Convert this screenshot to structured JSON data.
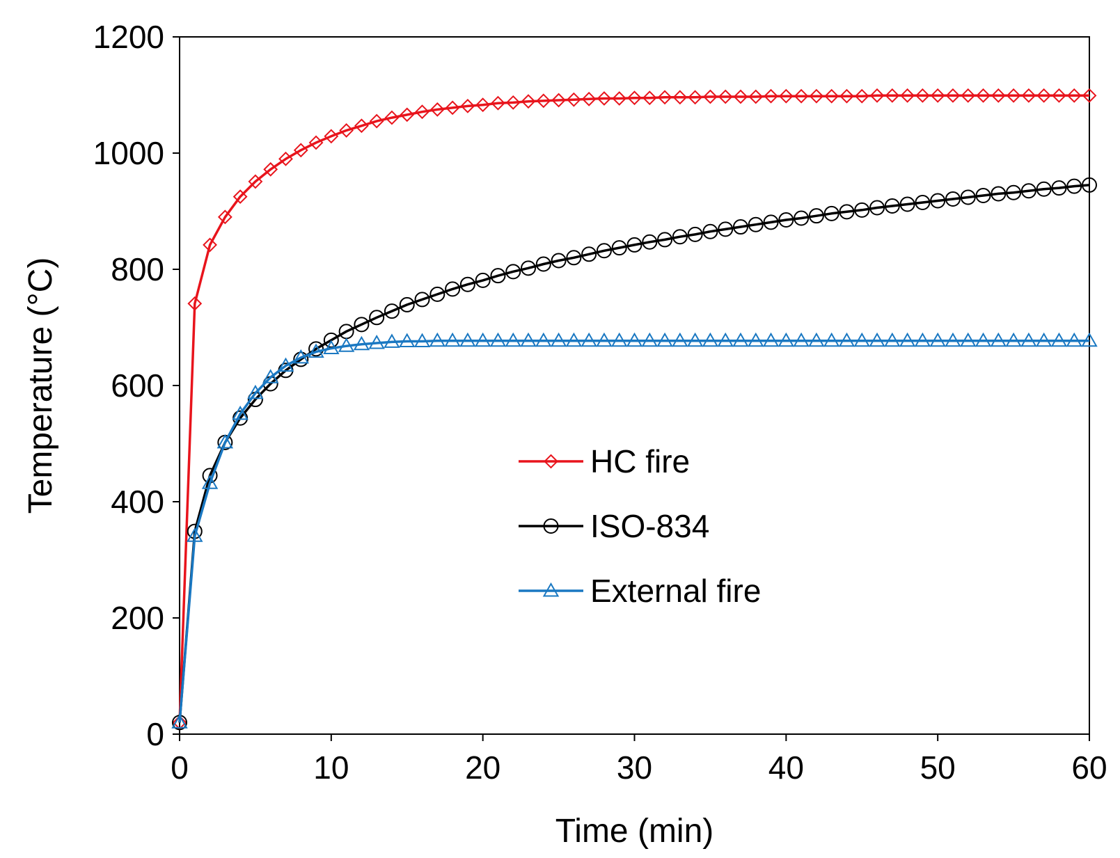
{
  "chart_data": {
    "type": "line",
    "title": "",
    "xlabel": "Time (min)",
    "ylabel": "Temperature (°C)",
    "xlim": [
      0,
      60
    ],
    "ylim": [
      0,
      1200
    ],
    "xticks": [
      0,
      10,
      20,
      30,
      40,
      50,
      60
    ],
    "yticks": [
      0,
      200,
      400,
      600,
      800,
      1000,
      1200
    ],
    "grid": false,
    "legend_position": "center-right",
    "series": [
      {
        "name": "HC fire",
        "color": "#e8141c",
        "marker": "diamond",
        "x": [
          0,
          1,
          2,
          3,
          4,
          5,
          6,
          7,
          8,
          9,
          10,
          11,
          12,
          13,
          14,
          15,
          16,
          17,
          18,
          19,
          20,
          21,
          22,
          23,
          24,
          25,
          26,
          27,
          28,
          29,
          30,
          31,
          32,
          33,
          34,
          35,
          36,
          37,
          38,
          39,
          40,
          41,
          42,
          43,
          44,
          45,
          46,
          47,
          48,
          49,
          50,
          51,
          52,
          53,
          54,
          55,
          56,
          57,
          58,
          59,
          60
        ],
        "y": [
          20,
          741,
          842,
          890,
          925,
          951,
          972,
          990,
          1005,
          1018,
          1029,
          1039,
          1047,
          1055,
          1061,
          1066,
          1071,
          1075,
          1078,
          1081,
          1083,
          1086,
          1087,
          1089,
          1090,
          1091,
          1092,
          1093,
          1094,
          1094,
          1095,
          1095,
          1096,
          1096,
          1096,
          1097,
          1097,
          1097,
          1097,
          1098,
          1098,
          1098,
          1098,
          1098,
          1098,
          1098,
          1099,
          1099,
          1099,
          1099,
          1099,
          1099,
          1099,
          1099,
          1099,
          1099,
          1099,
          1099,
          1099,
          1099,
          1099
        ]
      },
      {
        "name": "ISO-834",
        "color": "#000000",
        "marker": "circle",
        "x": [
          0,
          1,
          2,
          3,
          4,
          5,
          6,
          7,
          8,
          9,
          10,
          11,
          12,
          13,
          14,
          15,
          16,
          17,
          18,
          19,
          20,
          21,
          22,
          23,
          24,
          25,
          26,
          27,
          28,
          29,
          30,
          31,
          32,
          33,
          34,
          35,
          36,
          37,
          38,
          39,
          40,
          41,
          42,
          43,
          44,
          45,
          46,
          47,
          48,
          49,
          50,
          51,
          52,
          53,
          54,
          55,
          56,
          57,
          58,
          59,
          60
        ],
        "y": [
          20,
          349,
          445,
          502,
          544,
          576,
          603,
          626,
          645,
          663,
          678,
          693,
          705,
          717,
          728,
          739,
          748,
          757,
          766,
          774,
          781,
          789,
          796,
          802,
          809,
          815,
          820,
          826,
          832,
          837,
          842,
          847,
          851,
          856,
          860,
          865,
          869,
          873,
          877,
          881,
          885,
          888,
          892,
          896,
          899,
          902,
          906,
          909,
          912,
          915,
          918,
          921,
          924,
          927,
          930,
          932,
          935,
          938,
          940,
          943,
          945
        ]
      },
      {
        "name": "External fire",
        "color": "#1a78c2",
        "marker": "triangle",
        "x": [
          0,
          1,
          2,
          3,
          4,
          5,
          6,
          7,
          8,
          9,
          10,
          11,
          12,
          13,
          14,
          15,
          16,
          17,
          18,
          19,
          20,
          21,
          22,
          23,
          24,
          25,
          26,
          27,
          28,
          29,
          30,
          31,
          32,
          33,
          34,
          35,
          36,
          37,
          38,
          39,
          40,
          41,
          42,
          43,
          44,
          45,
          46,
          47,
          48,
          49,
          50,
          51,
          52,
          53,
          54,
          55,
          56,
          57,
          58,
          59,
          60
        ],
        "y": [
          20,
          341,
          432,
          502,
          551,
          587,
          614,
          634,
          648,
          658,
          664,
          668,
          671,
          673,
          675,
          676,
          676,
          677,
          677,
          677,
          677,
          677,
          677,
          677,
          677,
          677,
          677,
          677,
          677,
          677,
          677,
          677,
          677,
          677,
          677,
          677,
          677,
          677,
          677,
          677,
          677,
          677,
          677,
          677,
          677,
          677,
          677,
          677,
          677,
          677,
          677,
          677,
          677,
          677,
          677,
          677,
          677,
          677,
          677,
          677,
          677
        ]
      }
    ]
  }
}
